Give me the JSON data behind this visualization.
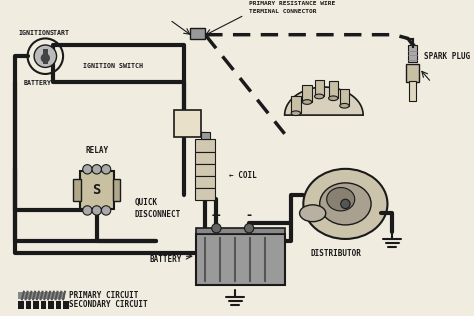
{
  "bg_color": "#f0ece0",
  "line_color": "#1a1a1a",
  "labels": {
    "ignition": "IGNITION",
    "start": "START",
    "ignition_switch": "IGNITION SWITCH",
    "battery_left": "BATTERY",
    "terminal_connector": "TERMINAL CONNECTOR",
    "primary_resistance": "PRIMARY RESISTANCE WIRE",
    "spark_plug": "SPARK PLUG",
    "quick_disconnect": "QUICK\nDISCONNECT",
    "relay": "RELAY",
    "coil_label": "COIL",
    "battery_bottom": "BATTERY",
    "distributor": "DISTRIBUTOR",
    "primary_circuit": "PRIMARY CIRCUIT",
    "secondary_circuit": "SECONDARY CIRCUIT"
  },
  "wire_lw": 3.0,
  "dashed_lw": 2.5,
  "font_size": 5.5
}
